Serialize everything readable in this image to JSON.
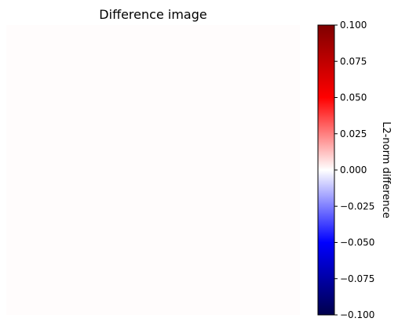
{
  "chart_data": {
    "type": "heatmap",
    "title": "Difference image",
    "xlabel": "",
    "ylabel": "",
    "axes_visible": false,
    "image_value": 0.0,
    "image_color": "#fffcfc",
    "colormap": "seismic",
    "colormap_stops": [
      "#00004c",
      "#0000ff",
      "#ffffff",
      "#ff0000",
      "#7f0000"
    ],
    "colorbar": {
      "label": "L2-norm difference",
      "vmin": -0.1,
      "vmax": 0.1,
      "ticks": [
        -0.1,
        -0.075,
        -0.05,
        -0.025,
        0.0,
        0.025,
        0.05,
        0.075,
        0.1
      ],
      "tick_labels": [
        "−0.100",
        "−0.075",
        "−0.050",
        "−0.025",
        "0.000",
        "0.025",
        "0.050",
        "0.075",
        "0.100"
      ]
    }
  }
}
